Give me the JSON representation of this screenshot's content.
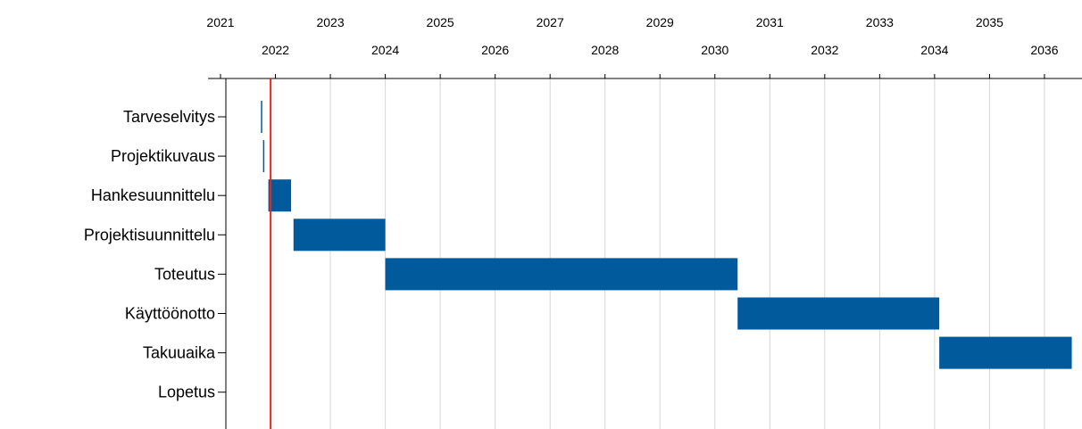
{
  "chart_data": {
    "type": "gantt",
    "x_axis": {
      "position": "top",
      "tick_labels_row1": [
        "2021",
        "2023",
        "2025",
        "2027",
        "2029",
        "2031",
        "2033",
        "2035"
      ],
      "tick_labels_row2": [
        "2022",
        "2024",
        "2026",
        "2028",
        "2030",
        "2032",
        "2034",
        "2036"
      ],
      "range": [
        "2021-01-01",
        "2036-07-01"
      ]
    },
    "grid": true,
    "today_marker": {
      "date": "2021-11-30",
      "color": "#e8251f"
    },
    "tasks": [
      {
        "name": "Tarveselvitys",
        "start": "2021-10-01",
        "end": "2021-10-01"
      },
      {
        "name": "Projektikuvaus",
        "start": "2021-10-15",
        "end": "2021-10-15"
      },
      {
        "name": "Hankesuunnittelu",
        "start": "2021-11-15",
        "end": "2022-04-15"
      },
      {
        "name": "Projektisuunnittelu",
        "start": "2022-05-01",
        "end": "2024-01-01"
      },
      {
        "name": "Toteutus",
        "start": "2024-01-01",
        "end": "2030-06-01"
      },
      {
        "name": "Käyttöönotto",
        "start": "2030-06-01",
        "end": "2034-02-01"
      },
      {
        "name": "Takuuaika",
        "start": "2034-02-01",
        "end": "2036-07-01"
      },
      {
        "name": "Lopetus",
        "start": null,
        "end": null
      }
    ],
    "bar_color": "#005a9c"
  }
}
